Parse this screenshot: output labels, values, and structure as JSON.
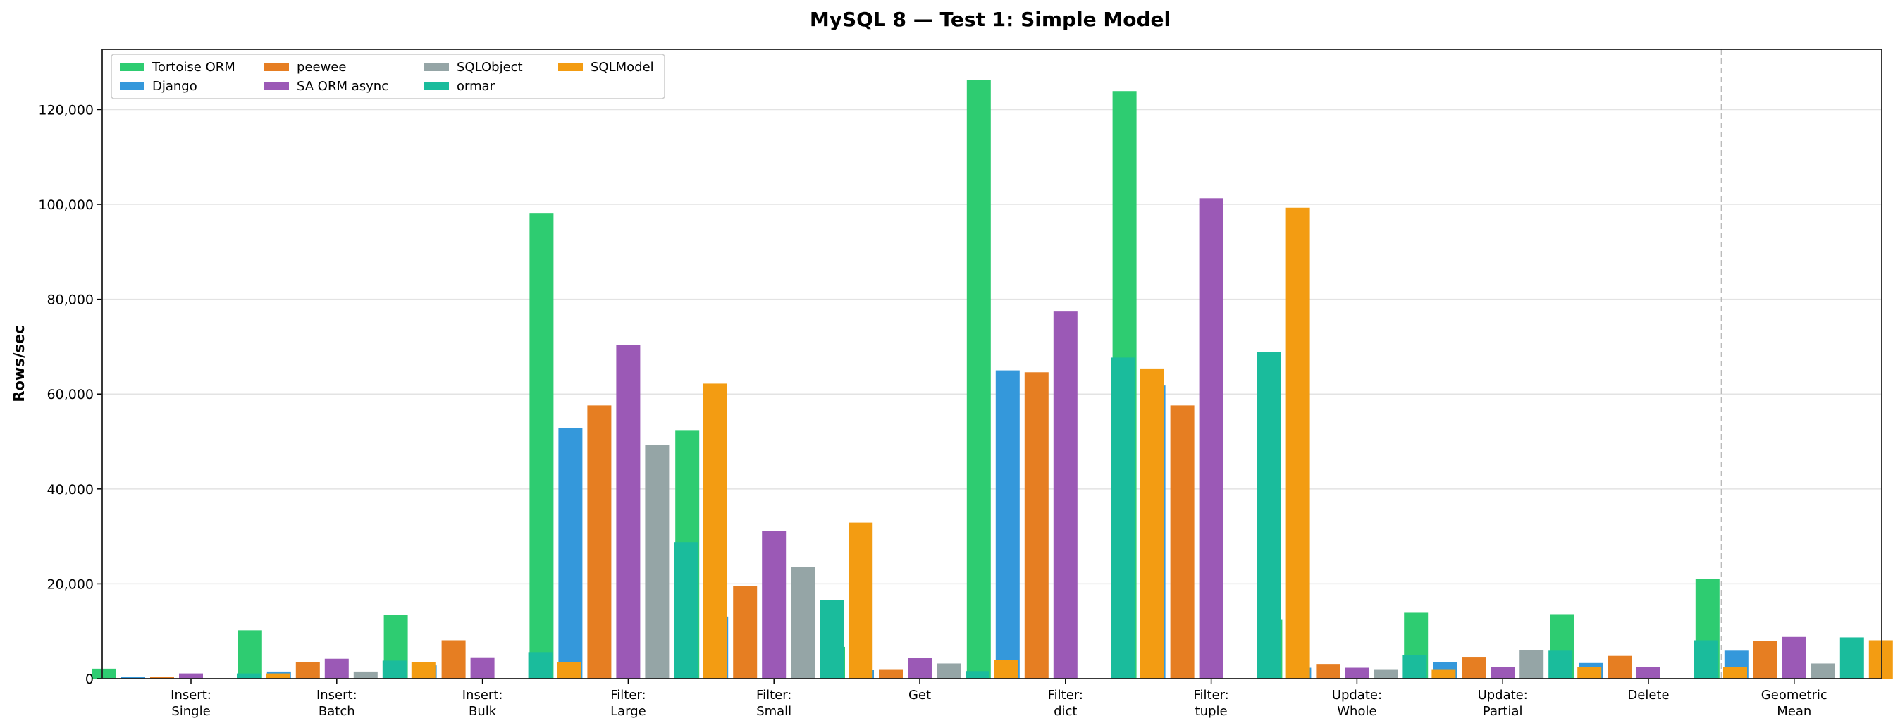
{
  "chart_data": {
    "type": "bar",
    "title": "MySQL 8 — Test 1: Simple Model",
    "xlabel": "",
    "ylabel": "Rows/sec",
    "ylim": [
      0,
      132700
    ],
    "yticks": [
      0,
      20000,
      40000,
      60000,
      80000,
      100000,
      120000
    ],
    "ytick_labels": [
      "0",
      "20,000",
      "40,000",
      "60,000",
      "80,000",
      "100,000",
      "120,000"
    ],
    "grid": true,
    "legend_placement": "top-left",
    "legend_columns": 4,
    "separator_before_category": "Geometric Mean",
    "categories": [
      [
        "Insert:",
        "Single"
      ],
      [
        "Insert:",
        "Batch"
      ],
      [
        "Insert:",
        "Bulk"
      ],
      [
        "Filter:",
        "Large"
      ],
      [
        "Filter:",
        "Small"
      ],
      [
        "Get"
      ],
      [
        "Filter:",
        "dict"
      ],
      [
        "Filter:",
        "tuple"
      ],
      [
        "Update:",
        "Whole"
      ],
      [
        "Update:",
        "Partial"
      ],
      [
        "Delete"
      ],
      [
        "Geometric",
        "Mean"
      ]
    ],
    "series": [
      {
        "name": "Tortoise ORM",
        "color": "#2ecc71",
        "values": [
          2100,
          10200,
          13400,
          98200,
          52400,
          6700,
          126300,
          123900,
          12400,
          13900,
          13600,
          21100
        ]
      },
      {
        "name": "Django",
        "color": "#3498db",
        "values": [
          300,
          1500,
          2800,
          52800,
          13100,
          1800,
          65000,
          61800,
          2300,
          3500,
          3300,
          5900
        ]
      },
      {
        "name": "peewee",
        "color": "#e67e22",
        "values": [
          300,
          3500,
          8100,
          57600,
          19600,
          2000,
          64600,
          57600,
          3100,
          4600,
          4800,
          8000
        ]
      },
      {
        "name": "SA ORM async",
        "color": "#9b59b6",
        "values": [
          1100,
          4200,
          4500,
          70300,
          31100,
          4400,
          77400,
          101300,
          2300,
          2400,
          2400,
          8800
        ]
      },
      {
        "name": "SQLObject",
        "color": "#95a5a6",
        "values": [
          null,
          1500,
          null,
          49200,
          23500,
          3200,
          null,
          null,
          2000,
          6000,
          null,
          3200
        ]
      },
      {
        "name": "ormar",
        "color": "#1abc9c",
        "values": [
          1100,
          3800,
          5600,
          28800,
          16600,
          1600,
          67700,
          68900,
          5000,
          5900,
          8100,
          8700
        ]
      },
      {
        "name": "SQLModel",
        "color": "#f39c12",
        "values": [
          1100,
          3500,
          3500,
          62200,
          32900,
          3900,
          65400,
          99300,
          2000,
          2400,
          2500,
          8100
        ]
      }
    ]
  }
}
